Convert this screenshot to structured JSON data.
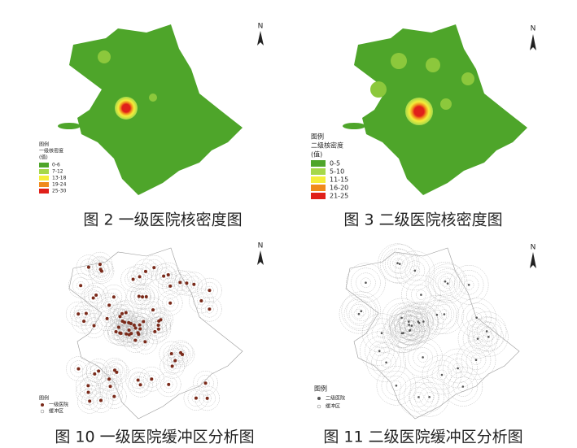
{
  "figures": [
    {
      "caption": "图 2 一级医院核密度图",
      "north": "N",
      "legend": {
        "title": "图例",
        "layer": "一级核密度",
        "unit": "(值)",
        "items": [
          "0-6",
          "7-12",
          "13-18",
          "19-24",
          "25-30"
        ]
      }
    },
    {
      "caption": "图 3 二级医院核密度图",
      "north": "N",
      "legend": {
        "title": "图例",
        "layer": "二级核密度",
        "unit": "(值)",
        "items": [
          "0-5",
          "5-10",
          "11-15",
          "16-20",
          "21-25"
        ]
      }
    },
    {
      "caption": "图 10 一级医院缓冲区分析图",
      "north": "N",
      "legend": {
        "title": "图例",
        "items": [
          "一级医院",
          "缓冲区"
        ]
      }
    },
    {
      "caption": "图 11 二级医院缓冲区分析图",
      "north": "N",
      "legend": {
        "title": "图例",
        "items": [
          "二级医院",
          "缓冲区"
        ]
      }
    }
  ]
}
